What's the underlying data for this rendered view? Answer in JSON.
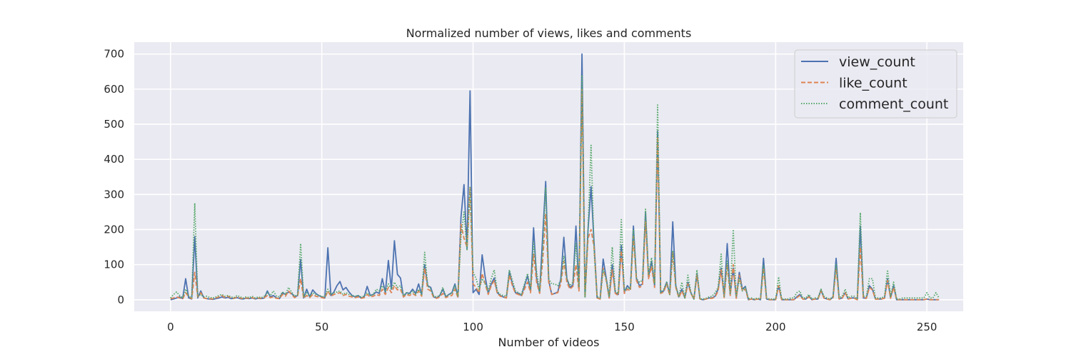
{
  "chart_data": {
    "type": "line",
    "title": "Normalized number of views, likes and comments",
    "xlabel": "Number of videos",
    "ylabel": "",
    "xlim": [
      -12,
      262
    ],
    "ylim": [
      -33,
      734
    ],
    "xticks": [
      0,
      50,
      100,
      150,
      200,
      250
    ],
    "yticks": [
      0,
      100,
      200,
      300,
      400,
      500,
      600,
      700
    ],
    "grid": true,
    "background": "#eaeaf2",
    "legend_position": "top-right",
    "series": [
      {
        "name": "view_count",
        "color": "#4c72b0",
        "dash": "solid",
        "values": [
          0,
          2,
          5,
          8,
          3,
          60,
          5,
          2,
          180,
          5,
          25,
          5,
          3,
          2,
          1,
          3,
          5,
          8,
          5,
          7,
          3,
          4,
          6,
          3,
          2,
          4,
          3,
          5,
          2,
          4,
          3,
          5,
          25,
          8,
          12,
          5,
          3,
          20,
          15,
          22,
          18,
          8,
          12,
          115,
          5,
          30,
          8,
          28,
          18,
          12,
          8,
          5,
          148,
          12,
          22,
          40,
          52,
          28,
          35,
          22,
          12,
          8,
          12,
          5,
          8,
          38,
          12,
          15,
          22,
          18,
          60,
          20,
          112,
          30,
          168,
          72,
          62,
          8,
          20,
          18,
          30,
          18,
          45,
          15,
          100,
          40,
          35,
          8,
          5,
          12,
          30,
          8,
          15,
          20,
          45,
          8,
          235,
          328,
          145,
          595,
          20,
          30,
          15,
          128,
          65,
          18,
          45,
          62,
          20,
          12,
          8,
          5,
          80,
          45,
          20,
          18,
          12,
          40,
          68,
          25,
          205,
          60,
          20,
          180,
          337,
          55,
          15,
          18,
          22,
          60,
          178,
          60,
          35,
          42,
          210,
          30,
          700,
          8,
          200,
          322,
          160,
          5,
          2,
          116,
          62,
          5,
          100,
          20,
          15,
          155,
          22,
          40,
          30,
          210,
          60,
          40,
          45,
          250,
          65,
          110,
          40,
          480,
          20,
          25,
          50,
          15,
          222,
          40,
          8,
          30,
          5,
          50,
          20,
          2,
          75,
          2,
          0,
          2,
          5,
          5,
          10,
          30,
          90,
          8,
          160,
          15,
          90,
          5,
          78,
          30,
          38,
          0,
          2,
          0,
          2,
          0,
          118,
          2,
          0,
          0,
          0,
          40,
          0,
          0,
          0,
          0,
          0,
          8,
          15,
          2,
          2,
          10,
          0,
          2,
          2,
          28,
          5,
          2,
          0,
          8,
          118,
          2,
          5,
          20,
          2,
          5,
          5,
          0,
          210,
          5,
          5,
          40,
          30,
          2,
          2,
          2,
          5,
          60,
          5,
          40,
          0,
          0,
          0,
          0,
          0,
          0,
          0,
          0,
          0,
          0,
          2,
          0,
          0,
          0,
          0
        ]
      },
      {
        "name": "like_count",
        "color": "#dd8452",
        "dash": "dashed",
        "values": [
          3,
          5,
          8,
          5,
          2,
          20,
          8,
          3,
          78,
          8,
          20,
          5,
          3,
          3,
          2,
          5,
          8,
          12,
          6,
          10,
          5,
          4,
          8,
          5,
          3,
          5,
          4,
          6,
          3,
          5,
          4,
          6,
          12,
          6,
          8,
          4,
          3,
          15,
          10,
          25,
          15,
          6,
          10,
          60,
          4,
          12,
          6,
          15,
          10,
          8,
          6,
          4,
          25,
          10,
          15,
          18,
          20,
          12,
          15,
          10,
          8,
          6,
          8,
          4,
          6,
          15,
          8,
          10,
          15,
          12,
          30,
          15,
          35,
          20,
          40,
          28,
          30,
          8,
          15,
          12,
          18,
          12,
          25,
          10,
          90,
          30,
          25,
          6,
          4,
          8,
          18,
          6,
          10,
          12,
          30,
          6,
          215,
          175,
          150,
          320,
          45,
          35,
          20,
          75,
          45,
          15,
          40,
          55,
          18,
          10,
          8,
          5,
          70,
          40,
          18,
          15,
          10,
          30,
          50,
          20,
          130,
          50,
          18,
          110,
          245,
          50,
          15,
          18,
          20,
          45,
          110,
          50,
          30,
          38,
          100,
          25,
          600,
          8,
          175,
          200,
          150,
          5,
          2,
          90,
          55,
          5,
          85,
          18,
          12,
          140,
          18,
          30,
          25,
          180,
          55,
          35,
          40,
          225,
          60,
          95,
          35,
          465,
          18,
          22,
          45,
          12,
          135,
          35,
          6,
          25,
          5,
          45,
          18,
          2,
          70,
          2,
          0,
          2,
          4,
          4,
          8,
          25,
          85,
          6,
          100,
          12,
          100,
          4,
          70,
          25,
          30,
          0,
          2,
          0,
          2,
          0,
          90,
          2,
          0,
          0,
          0,
          40,
          0,
          0,
          0,
          0,
          0,
          6,
          12,
          2,
          2,
          8,
          0,
          2,
          2,
          25,
          4,
          2,
          0,
          6,
          90,
          2,
          4,
          20,
          2,
          4,
          4,
          0,
          150,
          4,
          4,
          35,
          28,
          2,
          2,
          2,
          4,
          55,
          4,
          35,
          0,
          0,
          0,
          0,
          0,
          0,
          0,
          0,
          0,
          0,
          2,
          0,
          0,
          0,
          0
        ]
      },
      {
        "name": "comment_count",
        "color": "#55a868",
        "dash": "dotted",
        "values": [
          5,
          15,
          22,
          12,
          5,
          30,
          10,
          5,
          275,
          10,
          15,
          8,
          10,
          6,
          5,
          8,
          12,
          15,
          10,
          12,
          8,
          6,
          12,
          8,
          5,
          8,
          6,
          10,
          5,
          8,
          6,
          10,
          20,
          12,
          25,
          10,
          8,
          22,
          15,
          35,
          22,
          10,
          15,
          160,
          8,
          20,
          10,
          20,
          15,
          12,
          10,
          8,
          30,
          15,
          20,
          22,
          25,
          15,
          20,
          15,
          12,
          10,
          12,
          8,
          10,
          20,
          12,
          15,
          30,
          25,
          40,
          25,
          45,
          30,
          50,
          35,
          40,
          12,
          20,
          15,
          25,
          15,
          30,
          15,
          135,
          40,
          30,
          10,
          8,
          12,
          35,
          10,
          15,
          18,
          40,
          10,
          180,
          250,
          140,
          320,
          80,
          60,
          30,
          60,
          45,
          25,
          60,
          85,
          25,
          15,
          12,
          10,
          85,
          55,
          25,
          20,
          15,
          45,
          75,
          30,
          165,
          80,
          25,
          140,
          320,
          60,
          45,
          45,
          40,
          55,
          125,
          60,
          40,
          50,
          160,
          35,
          640,
          8,
          200,
          440,
          140,
          8,
          5,
          85,
          60,
          8,
          150,
          25,
          18,
          228,
          25,
          35,
          30,
          200,
          60,
          50,
          55,
          258,
          70,
          120,
          45,
          555,
          20,
          30,
          50,
          15,
          140,
          40,
          8,
          50,
          5,
          70,
          20,
          2,
          85,
          2,
          2,
          4,
          8,
          10,
          20,
          35,
          130,
          10,
          110,
          15,
          200,
          8,
          60,
          25,
          35,
          2,
          5,
          2,
          5,
          2,
          100,
          5,
          2,
          2,
          2,
          65,
          2,
          2,
          2,
          5,
          5,
          20,
          25,
          5,
          5,
          15,
          2,
          5,
          5,
          30,
          10,
          5,
          2,
          10,
          100,
          5,
          10,
          30,
          5,
          10,
          10,
          2,
          248,
          10,
          10,
          60,
          60,
          5,
          5,
          5,
          10,
          85,
          10,
          50,
          2,
          2,
          5,
          5,
          5,
          5,
          5,
          5,
          5,
          5,
          20,
          5,
          5,
          20,
          5
        ]
      }
    ]
  }
}
